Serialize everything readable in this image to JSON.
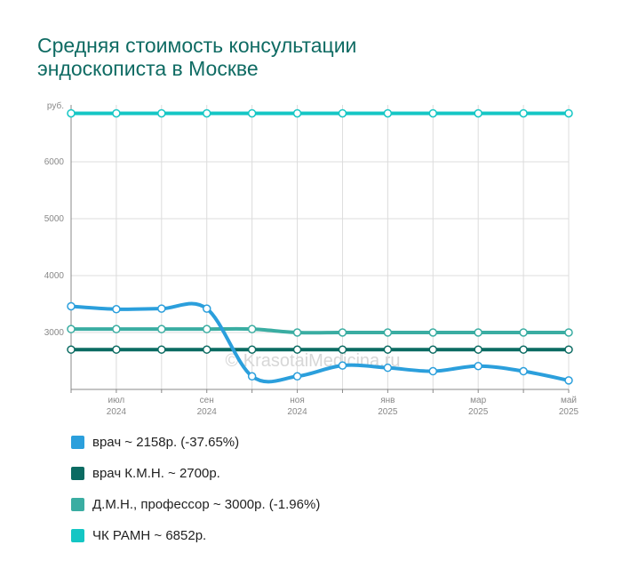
{
  "chart_data": {
    "type": "line",
    "title_lines": [
      "Средняя стоимость консультации",
      "эндоскописта в Москве"
    ],
    "ylabel": "руб.",
    "ylim": [
      2000,
      7000
    ],
    "yticks": [
      3000,
      4000,
      5000,
      6000
    ],
    "grid": true,
    "legend_position": "bottom",
    "x": [
      "2024-06",
      "2024-07",
      "2024-08",
      "2024-09",
      "2024-10",
      "2024-11",
      "2024-12",
      "2025-01",
      "2025-02",
      "2025-03",
      "2025-04",
      "2025-05"
    ],
    "x_tick_labels": [
      {
        "index": 1,
        "line1": "июл",
        "line2": "2024"
      },
      {
        "index": 3,
        "line1": "сен",
        "line2": "2024"
      },
      {
        "index": 5,
        "line1": "ноя",
        "line2": "2024"
      },
      {
        "index": 7,
        "line1": "янв",
        "line2": "2025"
      },
      {
        "index": 9,
        "line1": "мар",
        "line2": "2025"
      },
      {
        "index": 11,
        "line1": "май",
        "line2": "2025"
      }
    ],
    "series": [
      {
        "name": "врач",
        "legend": "врач ~ 2158р. (-37.65%)",
        "color": "#2b9fdc",
        "values": [
          3461,
          3410,
          3420,
          3420,
          2230,
          2230,
          2420,
          2380,
          2320,
          2410,
          2320,
          2158
        ]
      },
      {
        "name": "врач К.М.Н.",
        "legend": "врач К.М.Н. ~ 2700р.",
        "color": "#0b6b62",
        "values": [
          2700,
          2700,
          2700,
          2700,
          2700,
          2700,
          2700,
          2700,
          2700,
          2700,
          2700,
          2700
        ]
      },
      {
        "name": "Д.М.Н., профессор",
        "legend": "Д.М.Н., профессор ~ 3000р. (-1.96%)",
        "color": "#3aada2",
        "values": [
          3060,
          3060,
          3060,
          3060,
          3060,
          3000,
          3000,
          3000,
          3000,
          3000,
          3000,
          3000
        ]
      },
      {
        "name": "ЧК РАМН",
        "legend": "ЧК РАМН ~ 6852р.",
        "color": "#14c6c4",
        "values": [
          6852,
          6852,
          6852,
          6852,
          6852,
          6852,
          6852,
          6852,
          6852,
          6852,
          6852,
          6852
        ]
      }
    ],
    "watermark": "© KrasotaiMedicina.ru"
  }
}
